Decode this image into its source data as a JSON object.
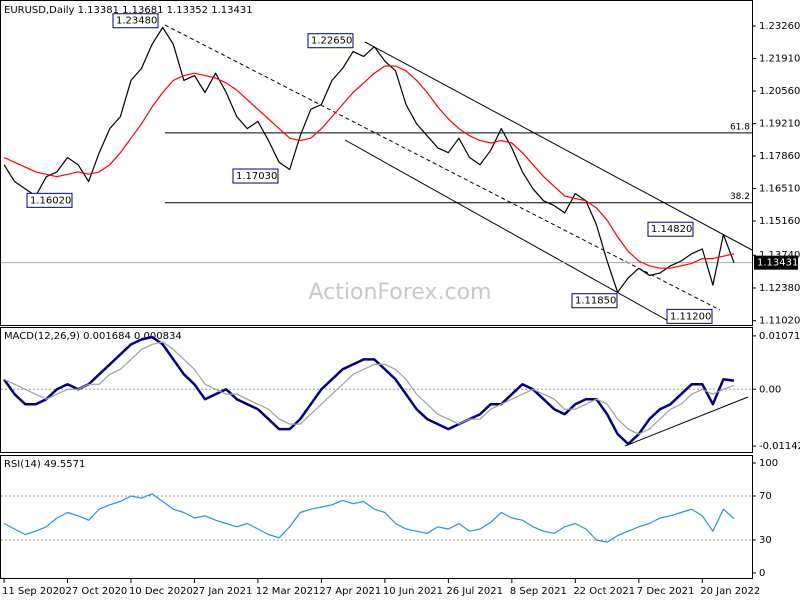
{
  "chart_data": [
    {
      "type": "line",
      "title": "EURUSD,Daily  1.13381 1.13681 1.13352 1.13431",
      "series": [
        {
          "color": "#000000",
          "values": [
            1.175,
            1.168,
            1.165,
            1.162,
            1.17,
            1.172,
            1.178,
            1.175,
            1.168,
            1.18,
            1.19,
            1.195,
            1.21,
            1.215,
            1.225,
            1.232,
            1.225,
            1.21,
            1.212,
            1.205,
            1.213,
            1.205,
            1.195,
            1.19,
            1.193,
            1.185,
            1.176,
            1.173,
            1.187,
            1.198,
            1.2,
            1.21,
            1.215,
            1.222,
            1.22,
            1.224,
            1.218,
            1.214,
            1.2,
            1.192,
            1.187,
            1.182,
            1.18,
            1.186,
            1.178,
            1.175,
            1.181,
            1.19,
            1.182,
            1.172,
            1.165,
            1.16,
            1.158,
            1.155,
            1.163,
            1.16,
            1.15,
            1.135,
            1.122,
            1.128,
            1.132,
            1.129,
            1.13,
            1.133,
            1.135,
            1.138,
            1.14,
            1.125,
            1.146,
            1.1343
          ]
        },
        {
          "color": "#ff0000",
          "values": [
            1.178,
            1.176,
            1.174,
            1.172,
            1.171,
            1.17,
            1.171,
            1.172,
            1.171,
            1.172,
            1.175,
            1.18,
            1.186,
            1.192,
            1.199,
            1.205,
            1.21,
            1.212,
            1.213,
            1.212,
            1.211,
            1.209,
            1.206,
            1.202,
            1.198,
            1.194,
            1.19,
            1.186,
            1.185,
            1.186,
            1.19,
            1.195,
            1.2,
            1.205,
            1.209,
            1.213,
            1.216,
            1.216,
            1.214,
            1.21,
            1.205,
            1.199,
            1.194,
            1.19,
            1.187,
            1.185,
            1.184,
            1.185,
            1.184,
            1.18,
            1.175,
            1.17,
            1.166,
            1.162,
            1.161,
            1.16,
            1.157,
            1.152,
            1.145,
            1.139,
            1.135,
            1.133,
            1.132,
            1.132,
            1.133,
            1.134,
            1.136,
            1.136,
            1.137,
            1.138
          ]
        }
      ],
      "ylim": [
        1.108,
        1.243
      ],
      "yticks": [
        {
          "value": 1.2326,
          "label": "1.23260"
        },
        {
          "value": 1.2191,
          "label": "1.21910"
        },
        {
          "value": 1.2056,
          "label": "1.20560"
        },
        {
          "value": 1.1921,
          "label": "1.19210"
        },
        {
          "value": 1.1786,
          "label": "1.17860"
        },
        {
          "value": 1.1651,
          "label": "1.16510"
        },
        {
          "value": 1.1516,
          "label": "1.15160"
        },
        {
          "value": 1.1374,
          "label": "1.13740"
        },
        {
          "value": 1.1238,
          "label": "1.12380"
        },
        {
          "value": 1.1102,
          "label": "1.11020"
        }
      ],
      "annotations": [
        {
          "value": 1.2348,
          "label": "1.23480"
        },
        {
          "value": 1.2265,
          "label": "1.22650"
        },
        {
          "value": 1.1703,
          "label": "1.17030"
        },
        {
          "value": 1.1602,
          "label": "1.16020"
        },
        {
          "value": 1.1185,
          "label": "1.11850"
        },
        {
          "value": 1.112,
          "label": "1.11200"
        },
        {
          "value": 1.1482,
          "label": "1.14820"
        }
      ],
      "fib_levels": [
        {
          "ratio": 61.8,
          "level": 1.1882
        },
        {
          "ratio": 38.2,
          "level": 1.1592
        }
      ],
      "last_price": {
        "value": 1.13431,
        "label": "1.13431"
      }
    },
    {
      "type": "line",
      "title": "MACD(12,26,9) 0.001684 0.000834",
      "series": [
        {
          "color": "#000080",
          "values": [
            0.002,
            -0.001,
            -0.003,
            -0.003,
            -0.002,
            0.0,
            0.001,
            0.0,
            0.001,
            0.003,
            0.005,
            0.007,
            0.009,
            0.01,
            0.0105,
            0.009,
            0.006,
            0.003,
            0.001,
            -0.002,
            -0.001,
            0.0,
            -0.002,
            -0.003,
            -0.004,
            -0.006,
            -0.008,
            -0.008,
            -0.006,
            -0.003,
            0.0,
            0.002,
            0.004,
            0.005,
            0.006,
            0.006,
            0.004,
            0.002,
            -0.001,
            -0.004,
            -0.006,
            -0.007,
            -0.008,
            -0.007,
            -0.006,
            -0.005,
            -0.003,
            -0.003,
            -0.001,
            0.001,
            0.0,
            -0.002,
            -0.004,
            -0.005,
            -0.003,
            -0.002,
            -0.002,
            -0.005,
            -0.009,
            -0.011,
            -0.009,
            -0.006,
            -0.004,
            -0.003,
            -0.001,
            0.001,
            0.001,
            -0.003,
            0.002,
            0.0017
          ]
        },
        {
          "color": "#a0a0a0",
          "values": [
            0.002,
            0.001,
            0.0,
            -0.001,
            -0.002,
            -0.001,
            0.0,
            0.0,
            0.001,
            0.001,
            0.003,
            0.004,
            0.006,
            0.008,
            0.009,
            0.0095,
            0.008,
            0.006,
            0.004,
            0.001,
            0.0,
            -0.001,
            -0.001,
            -0.002,
            -0.003,
            -0.004,
            -0.006,
            -0.007,
            -0.007,
            -0.005,
            -0.003,
            -0.001,
            0.001,
            0.003,
            0.004,
            0.005,
            0.005,
            0.004,
            0.002,
            -0.001,
            -0.003,
            -0.005,
            -0.006,
            -0.007,
            -0.006,
            -0.006,
            -0.004,
            -0.003,
            -0.002,
            -0.001,
            0.0,
            -0.001,
            -0.002,
            -0.004,
            -0.004,
            -0.003,
            -0.002,
            -0.003,
            -0.006,
            -0.008,
            -0.009,
            -0.008,
            -0.006,
            -0.004,
            -0.003,
            -0.001,
            0.0,
            -0.001,
            0.0,
            0.0008
          ]
        }
      ],
      "ylim": [
        -0.0128,
        0.0123
      ],
      "yticks": [
        0.010715,
        {
          "value": 0,
          "label": "0.00"
        },
        -0.011424
      ]
    },
    {
      "type": "line",
      "title": "RSI(14) 49.5571",
      "categories": [
        "11 Sep 2020",
        null,
        null,
        null,
        null,
        null,
        "27 Oct 2020",
        null,
        null,
        null,
        null,
        null,
        "10 Dec 2020",
        null,
        null,
        null,
        null,
        null,
        "27 Jan 2021",
        null,
        null,
        null,
        null,
        null,
        "12 Mar 2021",
        null,
        null,
        null,
        null,
        null,
        "27 Apr 2021",
        null,
        null,
        null,
        null,
        null,
        "10 Jun 2021",
        null,
        null,
        null,
        null,
        null,
        "26 Jul 2021",
        null,
        null,
        null,
        null,
        null,
        "8 Sep 2021",
        null,
        null,
        null,
        null,
        null,
        "22 Oct 2021",
        null,
        null,
        null,
        null,
        null,
        "7 Dec 2021",
        null,
        null,
        null,
        null,
        null,
        "20 Jan 2022",
        null,
        null,
        null
      ],
      "series": [
        {
          "color": "#1e90ff",
          "values": [
            45,
            40,
            35,
            38,
            42,
            50,
            55,
            52,
            48,
            58,
            62,
            65,
            70,
            68,
            72,
            65,
            58,
            55,
            50,
            52,
            48,
            45,
            42,
            45,
            40,
            35,
            32,
            42,
            55,
            58,
            60,
            62,
            66,
            63,
            65,
            58,
            55,
            45,
            40,
            38,
            36,
            42,
            40,
            45,
            38,
            40,
            46,
            55,
            50,
            48,
            42,
            38,
            36,
            42,
            45,
            40,
            30,
            28,
            34,
            38,
            42,
            45,
            50,
            52,
            55,
            58,
            52,
            38,
            58,
            49.56
          ]
        }
      ],
      "ylim": [
        -5.5,
        106.4
      ],
      "yticks": [
        100,
        70,
        30,
        0
      ]
    }
  ],
  "watermark": "ActionForex.com"
}
